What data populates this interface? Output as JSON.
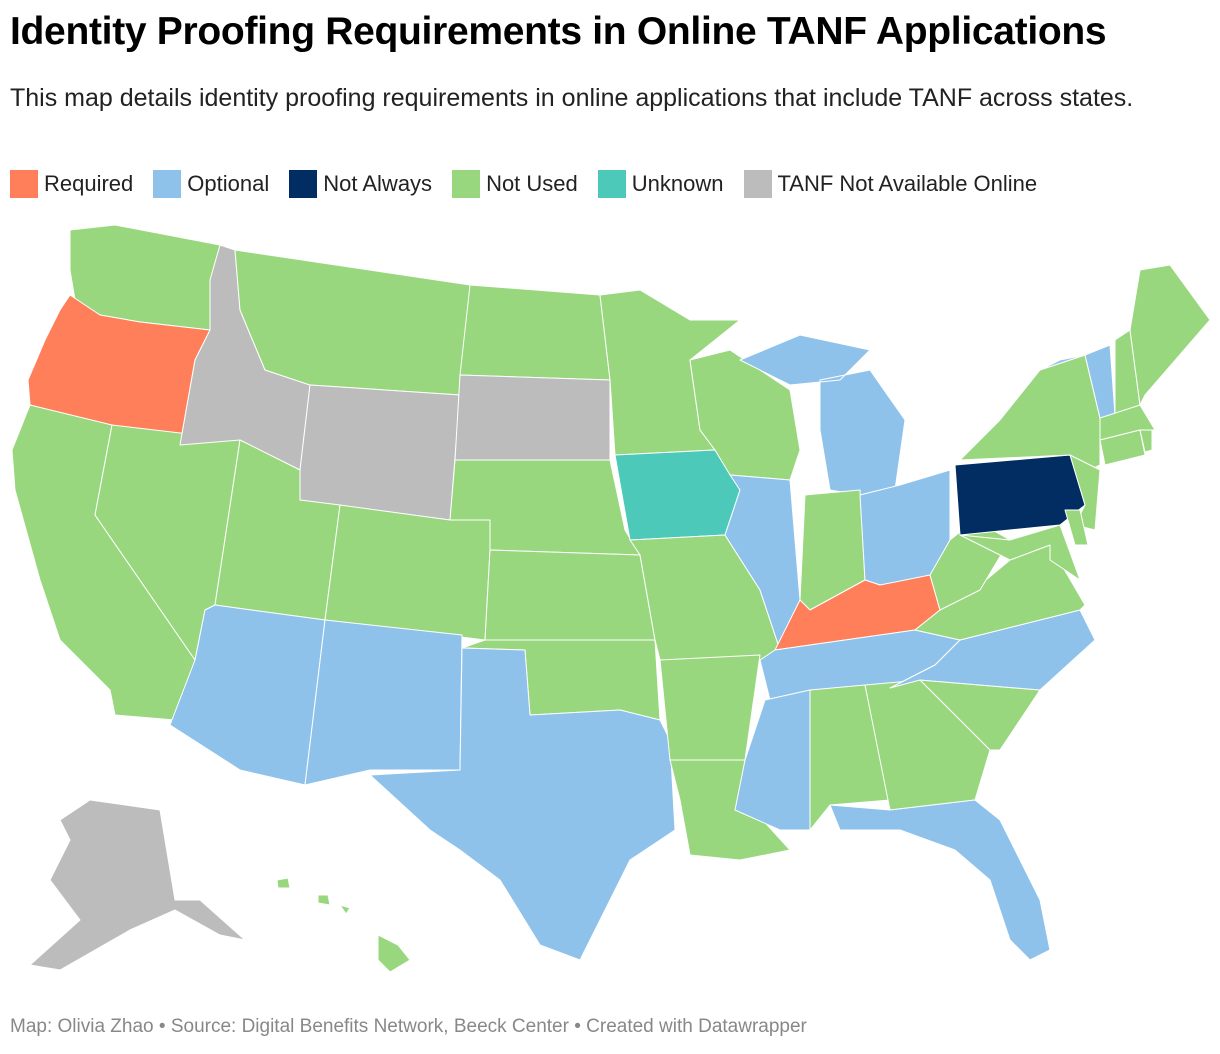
{
  "header": {
    "title": "Identity Proofing Requirements in Online TANF Applications",
    "subtitle": "This map details identity proofing requirements in online applications that include TANF across states."
  },
  "legend": [
    {
      "label": "Required",
      "color": "#ff7f5a"
    },
    {
      "label": "Optional",
      "color": "#8fc2ea"
    },
    {
      "label": "Not Always",
      "color": "#012d63"
    },
    {
      "label": "Not Used",
      "color": "#99d77e"
    },
    {
      "label": "Unknown",
      "color": "#4cc9b9"
    },
    {
      "label": "TANF Not Available Online",
      "color": "#bcbcbc"
    }
  ],
  "map": {
    "regions": [
      "Not Used",
      "Required",
      "Not Used",
      "Not Used",
      "TANF Not Available Online",
      "Not Used",
      "TANF Not Available Online",
      "Not Used",
      "Not Used",
      "Optional",
      "Optional",
      "Not Used",
      "TANF Not Available Online",
      "Not Used",
      "Not Used",
      "Not Used",
      "Optional",
      "Not Used",
      "Unknown",
      "Not Used",
      "Not Used",
      "Not Used",
      "Not Used",
      "Optional",
      "Optional",
      "Not Used",
      "Optional",
      "Required",
      "Optional",
      "Optional",
      "Not Used",
      "Not Used",
      "Optional",
      "Not Used",
      "Optional",
      "Not Used",
      "Not Used",
      "Not Used",
      "Not Always",
      "Not Used",
      "Not Used",
      "Not Used",
      "Optional",
      "Not Used",
      "Not Used",
      "Not Used",
      "Not Used",
      "Not Used",
      "Optional",
      "TANF Not Available Online",
      "Not Used"
    ]
  },
  "footer": {
    "credit": "Map: Olivia Zhao • Source: Digital Benefits Network, Beeck Center • Created with Datawrapper"
  }
}
